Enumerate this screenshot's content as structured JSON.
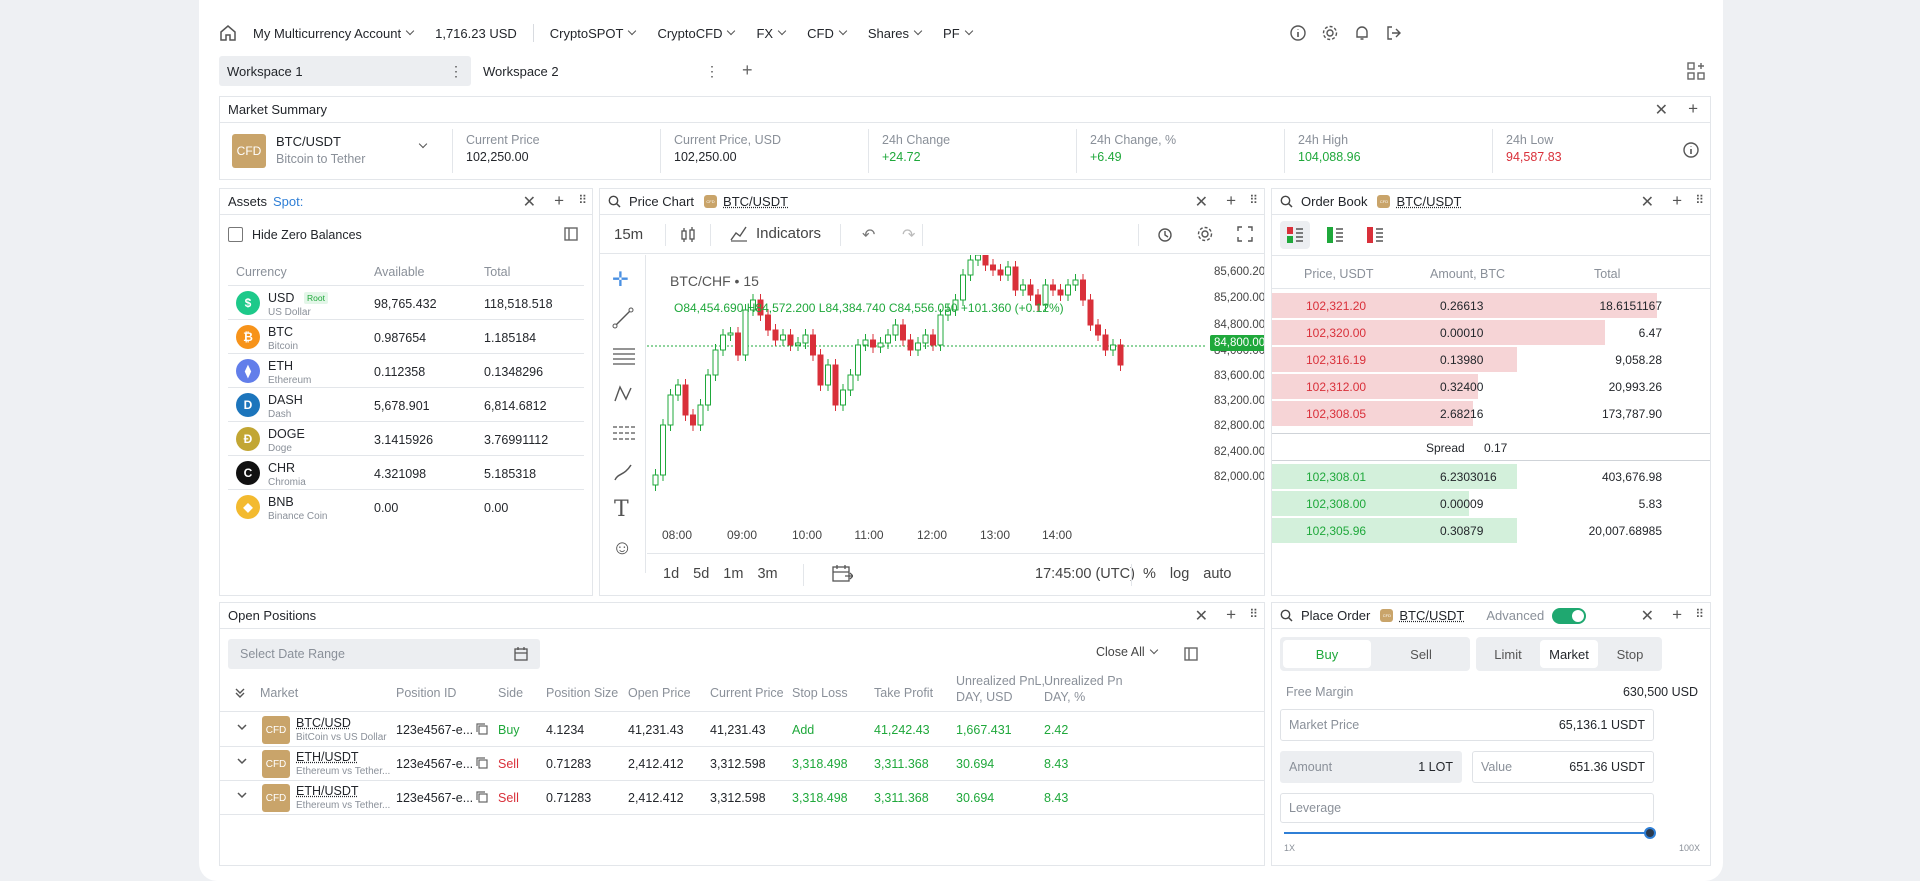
{
  "nav": {
    "account": "My Multicurrency Account",
    "balance": "1,716.23 USD",
    "menus": [
      "CryptoSPOT",
      "CryptoCFD",
      "FX",
      "CFD",
      "Shares",
      "PF"
    ]
  },
  "workspaces": [
    "Workspace 1",
    "Workspace 2"
  ],
  "market_summary": {
    "title": "Market Summary",
    "badge": "CFD",
    "pair": "BTC/USDT",
    "pair_desc": "Bitcoin to Tether",
    "stats": [
      {
        "label": "Current Price",
        "value": "102,250.00",
        "color": "#23262b"
      },
      {
        "label": "Current Price, USD",
        "value": "102,250.00",
        "color": "#23262b"
      },
      {
        "label": "24h Change",
        "value": "+24.72",
        "color": "#1fa83b"
      },
      {
        "label": "24h Change, %",
        "value": "+6.49",
        "color": "#1fa83b"
      },
      {
        "label": "24h High",
        "value": "104,088.96",
        "color": "#1fa83b"
      },
      {
        "label": "24h Low",
        "value": "94,587.83",
        "color": "#d9303a"
      }
    ]
  },
  "assets": {
    "title": "Assets",
    "filter": "Spot:",
    "hide_zero": "Hide Zero Balances",
    "headers": [
      "Currency",
      "Available",
      "Total"
    ],
    "root_badge": "Root",
    "rows": [
      {
        "sym": "USD",
        "name": "US Dollar",
        "avail": "98,765.432",
        "total": "118,518.518",
        "color": "#1dc98a",
        "glyph": "$"
      },
      {
        "sym": "BTC",
        "name": "Bitcoin",
        "avail": "0.987654",
        "total": "1.185184",
        "color": "#f7931a",
        "glyph": "₿"
      },
      {
        "sym": "ETH",
        "name": "Ethereum",
        "avail": "0.112358",
        "total": "0.1348296",
        "color": "#627eea",
        "glyph": "⧫"
      },
      {
        "sym": "DASH",
        "name": "Dash",
        "avail": "5,678.901",
        "total": "6,814.6812",
        "color": "#1c75bc",
        "glyph": "D"
      },
      {
        "sym": "DOGE",
        "name": "Doge",
        "avail": "3.1415926",
        "total": "3.76991112",
        "color": "#c2a633",
        "glyph": "Ð"
      },
      {
        "sym": "CHR",
        "name": "Chromia",
        "avail": "4.321098",
        "total": "5.185318",
        "color": "#111111",
        "glyph": "C"
      },
      {
        "sym": "BNB",
        "name": "Binance Coin",
        "avail": "0.00",
        "total": "0.00",
        "color": "#f3ba2f",
        "glyph": "◆"
      }
    ]
  },
  "price_chart": {
    "title": "Price Chart",
    "badge": "CFD",
    "pair": "BTC/USDT",
    "interval": "15m",
    "indicators": "Indicators",
    "legend_title": "BTC/CHF • 15",
    "ohlc": "O84,454.690 H84,572.200 L84,384.740 C84,556.050 +101.360 (+0.12%)",
    "last_price": "84,800.00",
    "price_ticks": [
      "85,600.20",
      "85,200.00",
      "84,800.00",
      "84,000.00",
      "83,600.00",
      "83,200.00",
      "82,800.00",
      "82,400.00",
      "82,000.00"
    ],
    "time_ticks": [
      "08:00",
      "09:00",
      "10:00",
      "11:00",
      "12:00",
      "13:00",
      "14:00"
    ],
    "ranges": [
      "1d",
      "5d",
      "1m",
      "3m"
    ],
    "clock": "17:45:00 (UTC)",
    "scale_opts": [
      "%",
      "log",
      "auto"
    ]
  },
  "order_book": {
    "title": "Order Book",
    "badge": "CFD",
    "pair": "BTC/USDT",
    "headers": [
      "Price, USDT",
      "Amount, BTC",
      "Total"
    ],
    "asks": [
      {
        "price": "102,321.20",
        "amount": "0.26613",
        "total": "18.6151167",
        "depth": 0.88
      },
      {
        "price": "102,320.00",
        "amount": "0.00010",
        "total": "6.47",
        "depth": 0.76
      },
      {
        "price": "102,316.19",
        "amount": "0.13980",
        "total": "9,058.28",
        "depth": 0.56
      },
      {
        "price": "102,312.00",
        "amount": "0.32400",
        "total": "20,993.26",
        "depth": 0.47
      },
      {
        "price": "102,308.05",
        "amount": "2.68216",
        "total": "173,787.90",
        "depth": 0.46
      }
    ],
    "spread_label": "Spread",
    "spread_value": "0.17",
    "bids": [
      {
        "price": "102,308.01",
        "amount": "6.2303016",
        "total": "403,676.98",
        "depth": 0.56
      },
      {
        "price": "102,308.00",
        "amount": "0.00009",
        "total": "5.83",
        "depth": 0.45
      },
      {
        "price": "102,305.96",
        "amount": "0.30879",
        "total": "20,007.68985",
        "depth": 0.56
      }
    ]
  },
  "open_positions": {
    "title": "Open Positions",
    "date_range": "Select Date Range",
    "close_all": "Close All",
    "headers": [
      "Market",
      "Position ID",
      "Side",
      "Position Size",
      "Open Price",
      "Current Price",
      "Stop Loss",
      "Take Profit",
      "Unrealized PnL, DAY, USD",
      "Unrealized Pn DAY, %"
    ],
    "rows": [
      {
        "market": "BTC/USD",
        "desc": "BitCoin vs US Dollar",
        "id": "123e4567-e...",
        "side": "Buy",
        "size": "4.1234",
        "open": "41,231.43",
        "current": "41,231.43",
        "sl": "Add",
        "tp": "41,242.43",
        "pnl": "1,667.431",
        "pct": "2.42"
      },
      {
        "market": "ETH/USDT",
        "desc": "Ethereum vs Tether...",
        "id": "123e4567-e...",
        "side": "Sell",
        "size": "0.71283",
        "open": "2,412.412",
        "current": "3,312.598",
        "sl": "3,318.498",
        "tp": "3,311.368",
        "pnl": "30.694",
        "pct": "8.43"
      },
      {
        "market": "ETH/USDT",
        "desc": "Ethereum vs Tether...",
        "id": "123e4567-e...",
        "side": "Sell",
        "size": "0.71283",
        "open": "2,412.412",
        "current": "3,312.598",
        "sl": "3,318.498",
        "tp": "3,311.368",
        "pnl": "30.694",
        "pct": "8.43"
      }
    ]
  },
  "place_order": {
    "title": "Place Order",
    "badge": "CFD",
    "pair": "BTC/USDT",
    "advanced": "Advanced",
    "buy": "Buy",
    "sell": "Sell",
    "types": [
      "Limit",
      "Market",
      "Stop"
    ],
    "free_margin_label": "Free Margin",
    "free_margin_value": "630,500 USD",
    "market_price_label": "Market Price",
    "market_price_value": "65,136.1 USDT",
    "amount_label": "Amount",
    "amount_value": "1 LOT",
    "value_label": "Value",
    "value_value": "651.36 USDT",
    "leverage_label": "Leverage",
    "lev_min": "1X",
    "lev_max": "100X",
    "leverage_level": 1.0
  }
}
